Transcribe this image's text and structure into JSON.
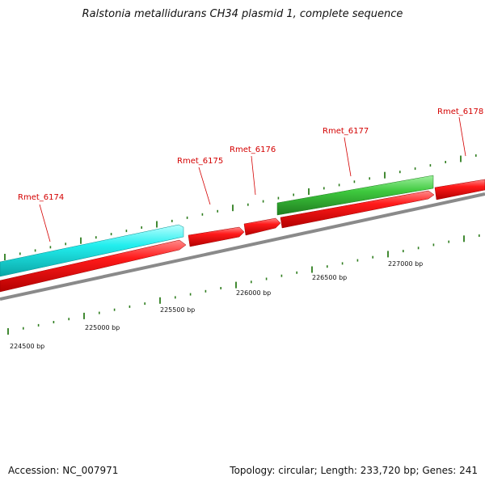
{
  "title": "Ralstonia metallidurans CH34 plasmid 1, complete sequence",
  "footer": {
    "accession": "Accession: NC_007971",
    "summary": "Topology: circular; Length: 233,720 bp; Genes: 241"
  },
  "colors": {
    "forward_strand": "#ff1a1a",
    "reverse_strand_cyan": "#22eeee",
    "reverse_strand_green": "#3ec93e",
    "backbone": "#8a8a8a",
    "tick": "#2e7d1e",
    "gene_label": "#d40000"
  },
  "axis_labels": [
    {
      "text": "224500 bp"
    },
    {
      "text": "225000 bp"
    },
    {
      "text": "225500 bp"
    },
    {
      "text": "226000 bp"
    },
    {
      "text": "226500 bp"
    },
    {
      "text": "227000 bp"
    }
  ],
  "genes": [
    {
      "label": "Rmet_6174"
    },
    {
      "label": "Rmet_6175"
    },
    {
      "label": "Rmet_6176"
    },
    {
      "label": "Rmet_6177"
    },
    {
      "label": "Rmet_6178"
    }
  ]
}
